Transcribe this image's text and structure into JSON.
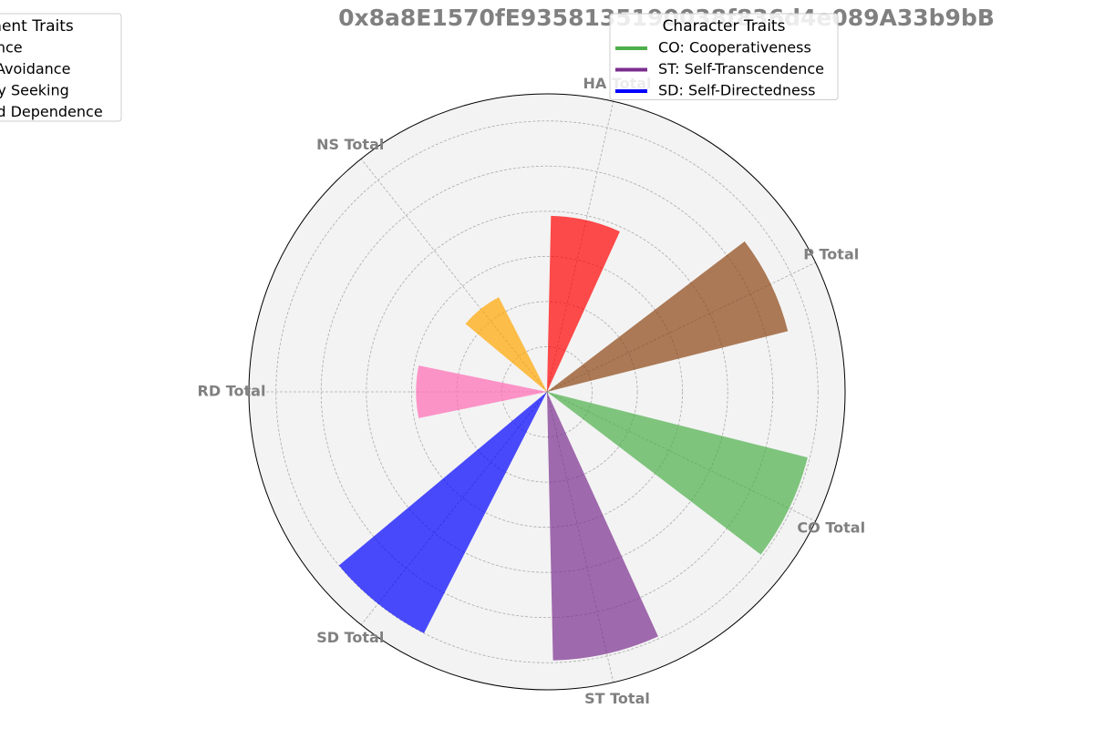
{
  "chart_data": {
    "type": "polar_bar",
    "title": "0x8a8E1570fE9358135190038f836d4e089A33b9bB",
    "categories": [
      "P Total",
      "HA Total",
      "NS Total",
      "RD Total",
      "SD Total",
      "ST Total",
      "CO Total"
    ],
    "values": [
      5.5,
      3.9,
      2.35,
      2.9,
      6.0,
      5.95,
      5.95
    ],
    "colors": [
      "#8b4513",
      "#ff0000",
      "#ffa500",
      "#ff69b4",
      "#0000ff",
      "#7b2d8e",
      "#4daf4a"
    ],
    "rlim": [
      0,
      6.6
    ],
    "rticks": [
      1,
      2,
      3,
      4,
      5,
      6
    ],
    "grid": true,
    "legends": [
      {
        "title": "Temperament Traits",
        "entries": [
          {
            "name": "P: Persistence",
            "color": "#8b4513"
          },
          {
            "name": "HA: Harm Avoidance",
            "color": "#ff0000"
          },
          {
            "name": "NS: Novelty Seeking",
            "color": "#ffa500"
          },
          {
            "name": "RD: Reward Dependence",
            "color": "#ff69b4"
          }
        ]
      },
      {
        "title": "Character Traits",
        "entries": [
          {
            "name": "CO: Cooperativeness",
            "color": "#4daf4a"
          },
          {
            "name": "ST: Self-Transcendence",
            "color": "#7b2d8e"
          },
          {
            "name": "SD: Self-Directedness",
            "color": "#0000ff"
          }
        ]
      }
    ]
  }
}
